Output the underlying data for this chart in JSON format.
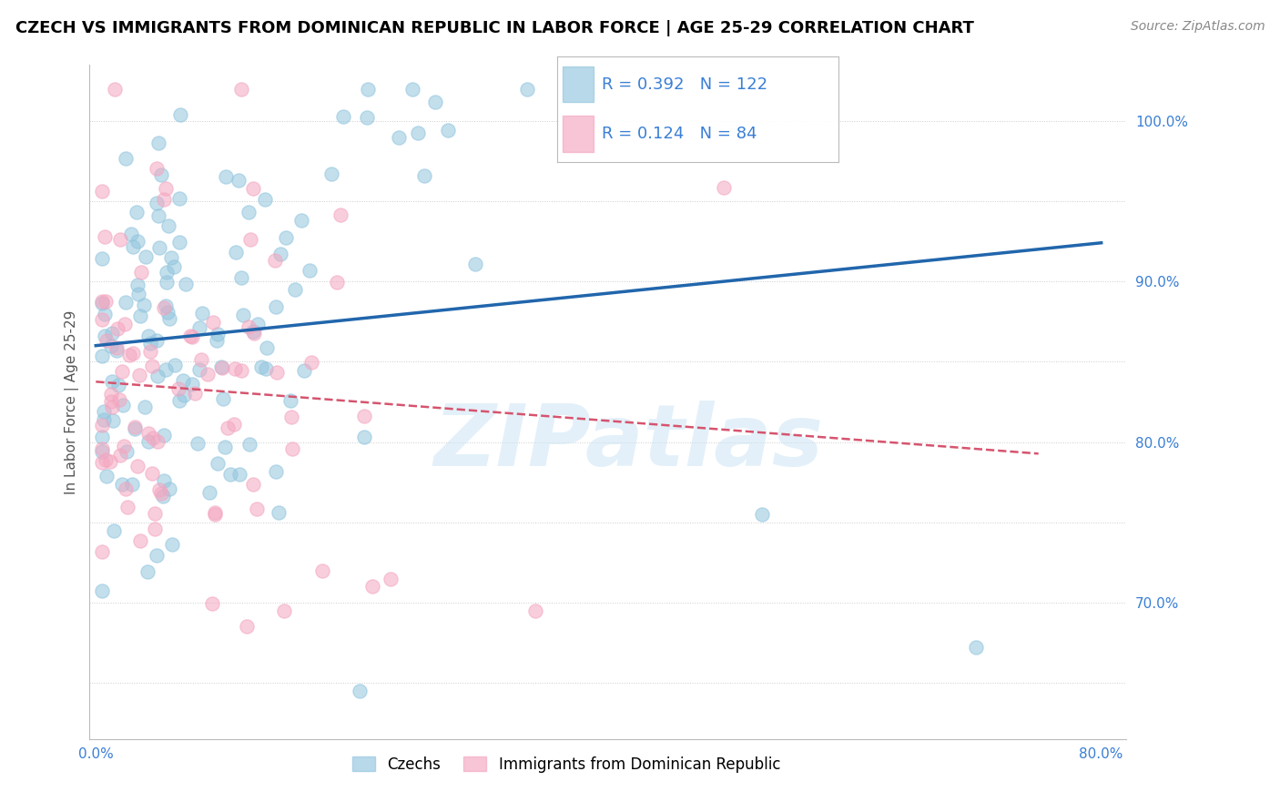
{
  "title": "CZECH VS IMMIGRANTS FROM DOMINICAN REPUBLIC IN LABOR FORCE | AGE 25-29 CORRELATION CHART",
  "source": "Source: ZipAtlas.com",
  "ylabel": "In Labor Force | Age 25-29",
  "xlim": [
    -0.005,
    0.82
  ],
  "ylim": [
    0.615,
    1.035
  ],
  "xtick_positions": [
    0.0,
    0.1,
    0.2,
    0.3,
    0.4,
    0.5,
    0.6,
    0.7,
    0.8
  ],
  "xticklabels": [
    "0.0%",
    "",
    "",
    "",
    "",
    "",
    "",
    "",
    "80.0%"
  ],
  "ytick_positions": [
    0.7,
    0.8,
    0.9,
    1.0
  ],
  "yticklabels": [
    "70.0%",
    "80.0%",
    "90.0%",
    "100.0%"
  ],
  "blue_color": "#92c5de",
  "pink_color": "#f4a6c0",
  "blue_line_color": "#2166ac",
  "pink_line_color": "#d6546e",
  "R_blue": 0.392,
  "N_blue": 122,
  "R_pink": 0.124,
  "N_pink": 84,
  "legend_label_blue": "Czechs",
  "legend_label_pink": "Immigrants from Dominican Republic",
  "watermark_text": "ZIPatlas",
  "title_fontsize": 13,
  "source_fontsize": 10,
  "tick_fontsize": 11,
  "ylabel_fontsize": 11
}
